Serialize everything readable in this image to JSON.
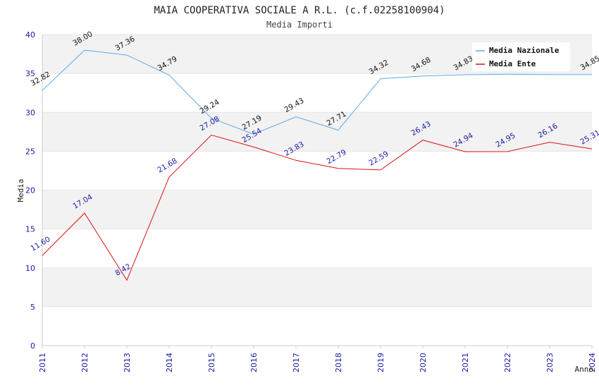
{
  "chart_data": {
    "type": "line",
    "title": "MAIA COOPERATIVA SOCIALE A R.L. (c.f.02258100904)",
    "subtitle": "Media Importi",
    "xlabel": "Anno",
    "ylabel": "Media",
    "ylim": [
      0,
      40
    ],
    "yticks": [
      "0",
      "5",
      "10",
      "15",
      "20",
      "25",
      "30",
      "35",
      "40"
    ],
    "grid": true,
    "legend_position": "top-right",
    "categories": [
      "2011",
      "2012",
      "2013",
      "2014",
      "2015",
      "2016",
      "2017",
      "2018",
      "2019",
      "2020",
      "2021",
      "2022",
      "2023",
      "2024"
    ],
    "series": [
      {
        "name": "Media Nazionale",
        "color": "#5ea8e8",
        "label_color": "#111111",
        "values": [
          32.82,
          38.0,
          37.36,
          34.79,
          29.24,
          27.19,
          29.43,
          27.71,
          34.32,
          34.68,
          34.83,
          34.89,
          34.85,
          34.85
        ],
        "labels": [
          "32.82",
          "38.00",
          "37.36",
          "34.79",
          "29.24",
          "27.19",
          "29.43",
          "27.71",
          "34.32",
          "34.68",
          "34.83",
          "",
          "",
          "34.85"
        ]
      },
      {
        "name": "Media Ente",
        "color": "#e01010",
        "label_color": "#1a1aa6",
        "values": [
          11.6,
          17.04,
          8.42,
          21.68,
          27.08,
          25.54,
          23.83,
          22.79,
          22.59,
          26.43,
          24.94,
          24.95,
          26.16,
          25.31
        ],
        "labels": [
          "11.60",
          "17.04",
          "8.42",
          "21.68",
          "27.08",
          "25.54",
          "23.83",
          "22.79",
          "22.59",
          "26.43",
          "24.94",
          "24.95",
          "26.16",
          "25.31"
        ]
      }
    ]
  }
}
